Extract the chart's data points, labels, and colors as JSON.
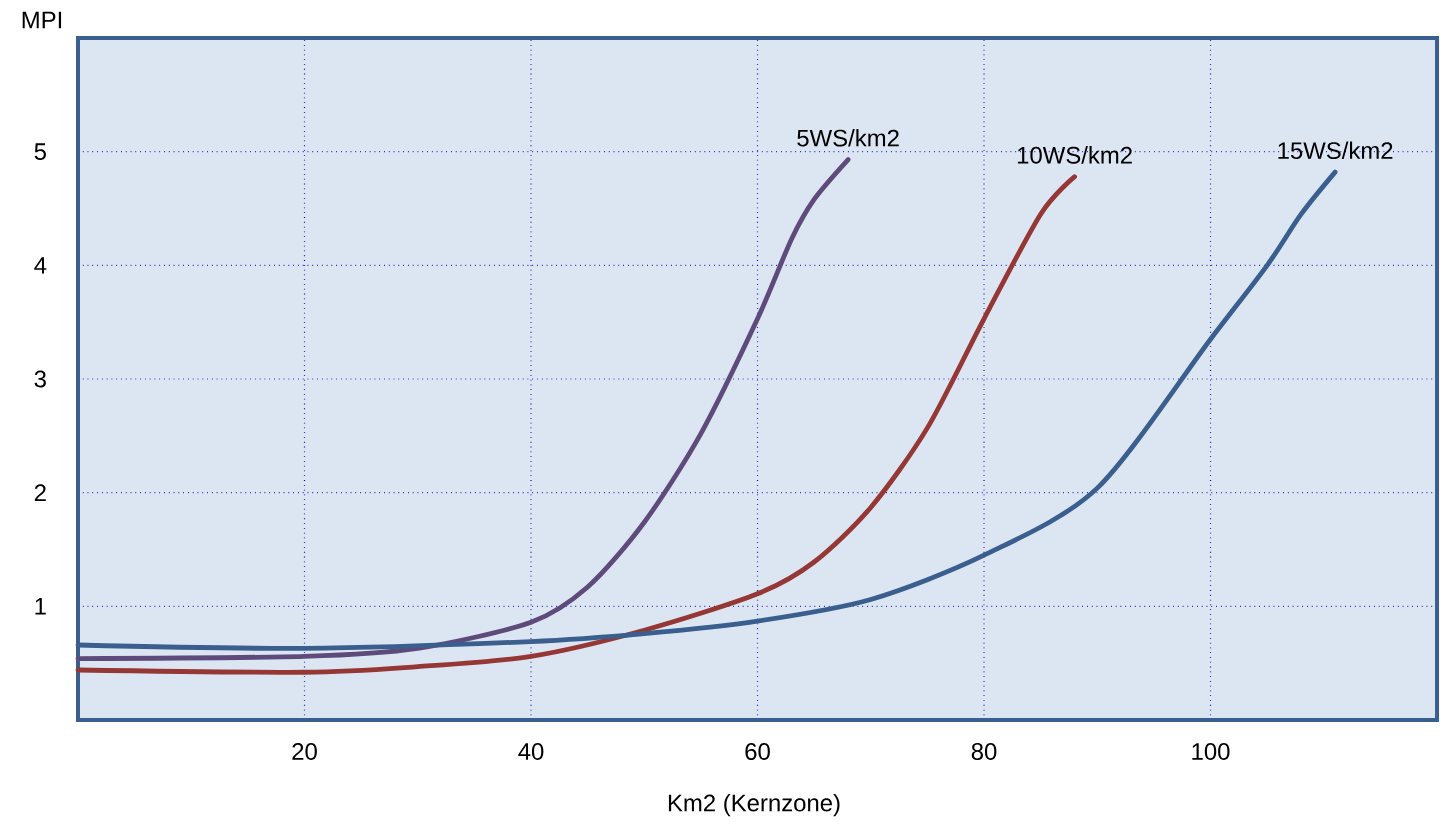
{
  "chart_data": {
    "type": "line",
    "xlabel": "Km2 (Kernzone)",
    "ylabel": "MPI",
    "xlim": [
      0,
      120
    ],
    "ylim": [
      0,
      6
    ],
    "xticks": [
      20,
      40,
      60,
      80,
      100
    ],
    "yticks": [
      1,
      2,
      3,
      4,
      5
    ],
    "grid": true,
    "series": [
      {
        "name": "5WS/km2",
        "color": "#5f4b7b",
        "x": [
          0,
          20,
          30,
          40,
          45,
          50,
          55,
          60,
          63,
          65,
          68
        ],
        "values": [
          0.54,
          0.56,
          0.63,
          0.86,
          1.17,
          1.74,
          2.52,
          3.53,
          4.23,
          4.58,
          4.93
        ]
      },
      {
        "name": "10WS/km2",
        "color": "#953735",
        "x": [
          0,
          20,
          30,
          40,
          50,
          60,
          65,
          70,
          75,
          80,
          85,
          88
        ],
        "values": [
          0.44,
          0.42,
          0.47,
          0.56,
          0.79,
          1.11,
          1.39,
          1.87,
          2.57,
          3.53,
          4.45,
          4.78
        ]
      },
      {
        "name": "15WS/km2",
        "color": "#3a5f8f",
        "x": [
          0,
          20,
          40,
          50,
          60,
          70,
          80,
          90,
          100,
          105,
          108,
          111
        ],
        "values": [
          0.66,
          0.63,
          0.69,
          0.76,
          0.87,
          1.06,
          1.45,
          2.04,
          3.35,
          4.0,
          4.45,
          4.82
        ]
      }
    ]
  }
}
